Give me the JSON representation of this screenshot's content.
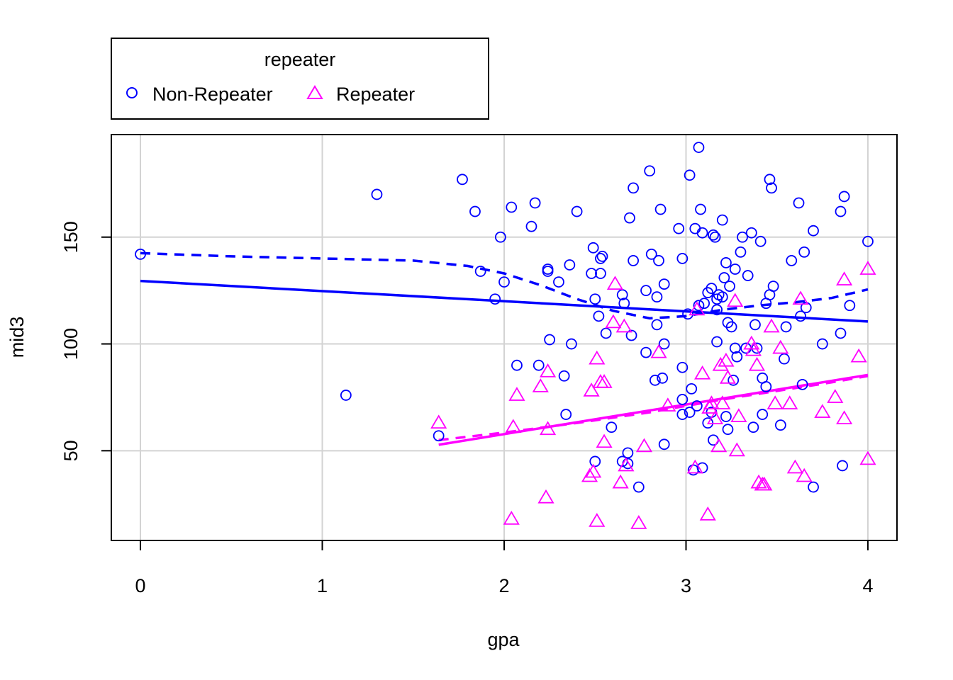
{
  "chart_data": {
    "type": "scatter",
    "xlabel": "gpa",
    "ylabel": "mid3",
    "xlim": [
      -0.16,
      4.16
    ],
    "ylim": [
      8,
      198
    ],
    "x_ticks": [
      0,
      1,
      2,
      3,
      4
    ],
    "y_ticks": [
      50,
      100,
      150
    ],
    "grid": true,
    "legend": {
      "title": "repeater",
      "position": "top-left, above plot",
      "entries": [
        {
          "label": "Non-Repeater",
          "marker": "circle",
          "color": "#0000ff"
        },
        {
          "label": "Repeater",
          "marker": "triangle",
          "color": "#ff00ff"
        }
      ]
    },
    "series": [
      {
        "name": "Non-Repeater",
        "marker": "circle",
        "color": "#0000ff",
        "points": [
          [
            0.0,
            142
          ],
          [
            1.13,
            76
          ],
          [
            1.3,
            170
          ],
          [
            1.64,
            57
          ],
          [
            1.77,
            177
          ],
          [
            1.84,
            162
          ],
          [
            1.87,
            134
          ],
          [
            1.95,
            121
          ],
          [
            1.98,
            150
          ],
          [
            2.0,
            129
          ],
          [
            2.04,
            164
          ],
          [
            2.07,
            90
          ],
          [
            2.15,
            155
          ],
          [
            2.17,
            166
          ],
          [
            2.19,
            90
          ],
          [
            2.24,
            135
          ],
          [
            2.24,
            134
          ],
          [
            2.25,
            102
          ],
          [
            2.3,
            129
          ],
          [
            2.33,
            85
          ],
          [
            2.34,
            67
          ],
          [
            2.36,
            137
          ],
          [
            2.37,
            100
          ],
          [
            2.4,
            162
          ],
          [
            2.48,
            133
          ],
          [
            2.49,
            145
          ],
          [
            2.5,
            121
          ],
          [
            2.5,
            45
          ],
          [
            2.52,
            113
          ],
          [
            2.53,
            133
          ],
          [
            2.53,
            140
          ],
          [
            2.54,
            141
          ],
          [
            2.56,
            105
          ],
          [
            2.59,
            61
          ],
          [
            2.65,
            123
          ],
          [
            2.65,
            45
          ],
          [
            2.66,
            119
          ],
          [
            2.68,
            49
          ],
          [
            2.68,
            44
          ],
          [
            2.69,
            159
          ],
          [
            2.7,
            104
          ],
          [
            2.71,
            139
          ],
          [
            2.71,
            173
          ],
          [
            2.74,
            33
          ],
          [
            2.78,
            96
          ],
          [
            2.78,
            125
          ],
          [
            2.8,
            181
          ],
          [
            2.81,
            142
          ],
          [
            2.83,
            83
          ],
          [
            2.84,
            109
          ],
          [
            2.84,
            122
          ],
          [
            2.85,
            139
          ],
          [
            2.86,
            163
          ],
          [
            2.87,
            84
          ],
          [
            2.88,
            128
          ],
          [
            2.88,
            100
          ],
          [
            2.88,
            53
          ],
          [
            2.96,
            154
          ],
          [
            2.98,
            140
          ],
          [
            2.98,
            89
          ],
          [
            2.98,
            74
          ],
          [
            2.98,
            67
          ],
          [
            3.01,
            114
          ],
          [
            3.02,
            68
          ],
          [
            3.02,
            179
          ],
          [
            3.03,
            79
          ],
          [
            3.04,
            41
          ],
          [
            3.05,
            154
          ],
          [
            3.06,
            71
          ],
          [
            3.07,
            192
          ],
          [
            3.07,
            118
          ],
          [
            3.08,
            163
          ],
          [
            3.09,
            152
          ],
          [
            3.09,
            42
          ],
          [
            3.1,
            119
          ],
          [
            3.12,
            63
          ],
          [
            3.12,
            124
          ],
          [
            3.14,
            68
          ],
          [
            3.14,
            126
          ],
          [
            3.15,
            55
          ],
          [
            3.15,
            151
          ],
          [
            3.16,
            150
          ],
          [
            3.17,
            101
          ],
          [
            3.17,
            121
          ],
          [
            3.17,
            116
          ],
          [
            3.18,
            123
          ],
          [
            3.2,
            158
          ],
          [
            3.2,
            122
          ],
          [
            3.21,
            131
          ],
          [
            3.22,
            138
          ],
          [
            3.22,
            66
          ],
          [
            3.23,
            60
          ],
          [
            3.23,
            110
          ],
          [
            3.24,
            127
          ],
          [
            3.25,
            108
          ],
          [
            3.26,
            83
          ],
          [
            3.27,
            135
          ],
          [
            3.27,
            98
          ],
          [
            3.28,
            94
          ],
          [
            3.3,
            143
          ],
          [
            3.31,
            150
          ],
          [
            3.33,
            98
          ],
          [
            3.34,
            132
          ],
          [
            3.36,
            152
          ],
          [
            3.37,
            61
          ],
          [
            3.38,
            109
          ],
          [
            3.39,
            98
          ],
          [
            3.41,
            148
          ],
          [
            3.42,
            84
          ],
          [
            3.42,
            67
          ],
          [
            3.44,
            80
          ],
          [
            3.44,
            119
          ],
          [
            3.46,
            177
          ],
          [
            3.46,
            123
          ],
          [
            3.47,
            173
          ],
          [
            3.48,
            127
          ],
          [
            3.52,
            62
          ],
          [
            3.54,
            93
          ],
          [
            3.55,
            108
          ],
          [
            3.58,
            139
          ],
          [
            3.62,
            166
          ],
          [
            3.63,
            113
          ],
          [
            3.64,
            81
          ],
          [
            3.65,
            143
          ],
          [
            3.66,
            117
          ],
          [
            3.7,
            153
          ],
          [
            3.7,
            33
          ],
          [
            3.75,
            100
          ],
          [
            3.85,
            162
          ],
          [
            3.85,
            105
          ],
          [
            3.86,
            43
          ],
          [
            3.87,
            169
          ],
          [
            3.9,
            118
          ],
          [
            4.0,
            148
          ]
        ]
      },
      {
        "name": "Repeater",
        "marker": "triangle",
        "color": "#ff00ff",
        "points": [
          [
            1.64,
            63
          ],
          [
            2.04,
            18
          ],
          [
            2.05,
            61
          ],
          [
            2.07,
            76
          ],
          [
            2.2,
            80
          ],
          [
            2.23,
            28
          ],
          [
            2.24,
            60
          ],
          [
            2.24,
            87
          ],
          [
            2.47,
            38
          ],
          [
            2.48,
            78
          ],
          [
            2.49,
            40
          ],
          [
            2.51,
            17
          ],
          [
            2.51,
            93
          ],
          [
            2.53,
            82
          ],
          [
            2.55,
            82
          ],
          [
            2.55,
            54
          ],
          [
            2.6,
            110
          ],
          [
            2.61,
            128
          ],
          [
            2.64,
            35
          ],
          [
            2.66,
            108
          ],
          [
            2.67,
            43
          ],
          [
            2.74,
            16
          ],
          [
            2.77,
            52
          ],
          [
            2.85,
            96
          ],
          [
            2.9,
            71
          ],
          [
            3.05,
            42
          ],
          [
            3.06,
            116
          ],
          [
            3.09,
            86
          ],
          [
            3.12,
            20
          ],
          [
            3.13,
            70
          ],
          [
            3.14,
            72
          ],
          [
            3.16,
            65
          ],
          [
            3.18,
            52
          ],
          [
            3.19,
            90
          ],
          [
            3.2,
            72
          ],
          [
            3.22,
            92
          ],
          [
            3.23,
            84
          ],
          [
            3.27,
            120
          ],
          [
            3.28,
            50
          ],
          [
            3.29,
            66
          ],
          [
            3.36,
            100
          ],
          [
            3.37,
            97
          ],
          [
            3.39,
            90
          ],
          [
            3.4,
            35
          ],
          [
            3.42,
            34
          ],
          [
            3.43,
            34
          ],
          [
            3.47,
            108
          ],
          [
            3.49,
            72
          ],
          [
            3.52,
            98
          ],
          [
            3.57,
            72
          ],
          [
            3.6,
            42
          ],
          [
            3.63,
            121
          ],
          [
            3.65,
            38
          ],
          [
            3.75,
            68
          ],
          [
            3.82,
            75
          ],
          [
            3.87,
            130
          ],
          [
            3.87,
            65
          ],
          [
            3.95,
            94
          ],
          [
            4.0,
            135
          ],
          [
            4.0,
            46
          ]
        ]
      }
    ],
    "fit_lines": [
      {
        "series": "Non-Repeater",
        "style": "solid",
        "color": "#0000ff",
        "points": [
          [
            0,
            129.5
          ],
          [
            4,
            110.5
          ]
        ]
      },
      {
        "series": "Non-Repeater",
        "style": "dashed",
        "color": "#0000ff",
        "points": [
          [
            0,
            142.5
          ],
          [
            0.5,
            141
          ],
          [
            1,
            140
          ],
          [
            1.5,
            139
          ],
          [
            1.8,
            136.5
          ],
          [
            2.0,
            133
          ],
          [
            2.2,
            127.5
          ],
          [
            2.4,
            121
          ],
          [
            2.6,
            115.5
          ],
          [
            2.8,
            112
          ],
          [
            3.0,
            113
          ],
          [
            3.2,
            116
          ],
          [
            3.4,
            118
          ],
          [
            3.6,
            119.5
          ],
          [
            3.8,
            121.5
          ],
          [
            4.0,
            125.5
          ]
        ]
      },
      {
        "series": "Repeater",
        "style": "solid",
        "color": "#ff00ff",
        "points": [
          [
            1.64,
            52.8
          ],
          [
            4,
            85.5
          ]
        ]
      },
      {
        "series": "Repeater",
        "style": "dashed",
        "color": "#ff00ff",
        "points": [
          [
            1.64,
            55
          ],
          [
            2.0,
            58.5
          ],
          [
            2.4,
            63
          ],
          [
            2.8,
            68
          ],
          [
            3.0,
            71
          ],
          [
            3.2,
            74
          ],
          [
            3.5,
            78
          ],
          [
            3.8,
            82
          ],
          [
            4.0,
            85
          ]
        ]
      }
    ]
  }
}
